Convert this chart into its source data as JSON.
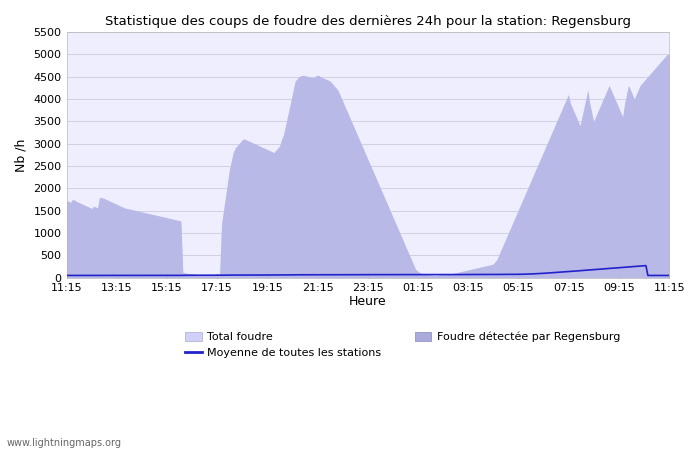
{
  "title": "Statistique des coups de foudre des dernières 24h pour la station: Regensburg",
  "ylabel": "Nb /h",
  "xlabel": "Heure",
  "watermark": "www.lightningmaps.org",
  "ylim": [
    0,
    5500
  ],
  "yticks": [
    0,
    500,
    1000,
    1500,
    2000,
    2500,
    3000,
    3500,
    4000,
    4500,
    5000,
    5500
  ],
  "x_labels": [
    "11:15",
    "13:15",
    "15:15",
    "17:15",
    "19:15",
    "21:15",
    "23:15",
    "01:15",
    "03:15",
    "05:15",
    "07:15",
    "09:15",
    "11:15"
  ],
  "legend_items": [
    "Total foudre",
    "Moyenne de toutes les stations",
    "Foudre détectée par Regensburg"
  ],
  "bg_color": "#ffffff",
  "plot_bg_color": "#eeeeff",
  "grid_color": "#ccccdd",
  "fill_total_color": "#d0d0f8",
  "fill_local_color": "#aaaadd",
  "mean_line_color": "#2222cc",
  "total_foudre": [
    1700,
    1720,
    1680,
    1750,
    1740,
    1710,
    1690,
    1670,
    1650,
    1630,
    1610,
    1590,
    1570,
    1550,
    1600,
    1580,
    1560,
    1800,
    1790,
    1780,
    1760,
    1740,
    1720,
    1700,
    1680,
    1660,
    1640,
    1620,
    1600,
    1580,
    1560,
    1550,
    1540,
    1530,
    1520,
    1510,
    1500,
    1490,
    1480,
    1470,
    1460,
    1450,
    1440,
    1430,
    1420,
    1410,
    1400,
    1390,
    1380,
    1370,
    1360,
    1350,
    1340,
    1330,
    1320,
    1310,
    1300,
    1290,
    1280,
    1270,
    120,
    110,
    100,
    95,
    90,
    85,
    80,
    75,
    70,
    65,
    60,
    55,
    50,
    55,
    60,
    65,
    70,
    75,
    80,
    85,
    1200,
    1500,
    1800,
    2100,
    2400,
    2600,
    2800,
    2900,
    2950,
    3000,
    3050,
    3100,
    3100,
    3080,
    3060,
    3040,
    3020,
    3000,
    2980,
    2960,
    2940,
    2920,
    2900,
    2880,
    2860,
    2840,
    2820,
    2800,
    2850,
    2900,
    2950,
    3100,
    3200,
    3400,
    3600,
    3800,
    4000,
    4200,
    4400,
    4450,
    4500,
    4520,
    4530,
    4520,
    4510,
    4500,
    4490,
    4480,
    4500,
    4520,
    4530,
    4500,
    4480,
    4460,
    4440,
    4420,
    4400,
    4350,
    4300,
    4250,
    4200,
    4100,
    4000,
    3900,
    3800,
    3700,
    3600,
    3500,
    3400,
    3300,
    3200,
    3100,
    3000,
    2900,
    2800,
    2700,
    2600,
    2500,
    2400,
    2300,
    2200,
    2100,
    2000,
    1900,
    1800,
    1700,
    1600,
    1500,
    1400,
    1300,
    1200,
    1100,
    1000,
    900,
    800,
    700,
    600,
    500,
    400,
    300,
    200,
    150,
    120,
    100,
    90,
    80,
    70,
    65,
    60,
    55,
    50,
    55,
    60,
    65,
    70,
    75,
    80,
    85,
    90,
    95,
    100,
    110,
    120,
    130,
    140,
    150,
    160,
    170,
    180,
    190,
    200,
    210,
    220,
    230,
    240,
    250,
    260,
    270,
    280,
    290,
    300,
    350,
    400,
    500,
    600,
    700,
    800,
    900,
    1000,
    1100,
    1200,
    1300,
    1400,
    1500,
    1600,
    1700,
    1800,
    1900,
    2000,
    2100,
    2200,
    2300,
    2400,
    2500,
    2600,
    2700,
    2800,
    2900,
    3000,
    3100,
    3200,
    3300,
    3400,
    3500,
    3600,
    3700,
    3800,
    3900,
    4000,
    4100,
    3900,
    3800,
    3700,
    3600,
    3500,
    3400,
    3600,
    3800,
    4000,
    4200,
    3900,
    3700,
    3500,
    3600,
    3700,
    3800,
    3900,
    4000,
    4100,
    4200,
    4300,
    4200,
    4100,
    4000,
    3900,
    3800,
    3700,
    3600,
    3900,
    4100,
    4300,
    4200,
    4100,
    4000,
    4100,
    4200,
    4300,
    4350,
    4400,
    4450,
    4500,
    4550,
    4600,
    4650,
    4700,
    4750,
    4800,
    4850,
    4900,
    4950,
    5000,
    5000
  ],
  "local_foudre": [
    1700,
    1720,
    1680,
    1750,
    1740,
    1710,
    1690,
    1670,
    1650,
    1630,
    1610,
    1590,
    1570,
    1550,
    1600,
    1580,
    1560,
    1800,
    1790,
    1780,
    1760,
    1740,
    1720,
    1700,
    1680,
    1660,
    1640,
    1620,
    1600,
    1580,
    1560,
    1550,
    1540,
    1530,
    1520,
    1510,
    1500,
    1490,
    1480,
    1470,
    1460,
    1450,
    1440,
    1430,
    1420,
    1410,
    1400,
    1390,
    1380,
    1370,
    1360,
    1350,
    1340,
    1330,
    1320,
    1310,
    1300,
    1290,
    1280,
    1270,
    120,
    110,
    100,
    95,
    90,
    85,
    80,
    75,
    70,
    65,
    60,
    55,
    50,
    55,
    60,
    65,
    70,
    75,
    80,
    85,
    1200,
    1500,
    1800,
    2100,
    2400,
    2600,
    2800,
    2900,
    2950,
    3000,
    3050,
    3100,
    3100,
    3080,
    3060,
    3040,
    3020,
    3000,
    2980,
    2960,
    2940,
    2920,
    2900,
    2880,
    2860,
    2840,
    2820,
    2800,
    2850,
    2900,
    2950,
    3100,
    3200,
    3400,
    3600,
    3800,
    4000,
    4200,
    4400,
    4450,
    4500,
    4520,
    4530,
    4520,
    4510,
    4500,
    4490,
    4480,
    4500,
    4520,
    4530,
    4500,
    4480,
    4460,
    4440,
    4420,
    4400,
    4350,
    4300,
    4250,
    4200,
    4100,
    4000,
    3900,
    3800,
    3700,
    3600,
    3500,
    3400,
    3300,
    3200,
    3100,
    3000,
    2900,
    2800,
    2700,
    2600,
    2500,
    2400,
    2300,
    2200,
    2100,
    2000,
    1900,
    1800,
    1700,
    1600,
    1500,
    1400,
    1300,
    1200,
    1100,
    1000,
    900,
    800,
    700,
    600,
    500,
    400,
    300,
    200,
    150,
    120,
    100,
    90,
    80,
    70,
    65,
    60,
    55,
    50,
    55,
    60,
    65,
    70,
    75,
    80,
    85,
    90,
    95,
    100,
    110,
    120,
    130,
    140,
    150,
    160,
    170,
    180,
    190,
    200,
    210,
    220,
    230,
    240,
    250,
    260,
    270,
    280,
    290,
    300,
    350,
    400,
    500,
    600,
    700,
    800,
    900,
    1000,
    1100,
    1200,
    1300,
    1400,
    1500,
    1600,
    1700,
    1800,
    1900,
    2000,
    2100,
    2200,
    2300,
    2400,
    2500,
    2600,
    2700,
    2800,
    2900,
    3000,
    3100,
    3200,
    3300,
    3400,
    3500,
    3600,
    3700,
    3800,
    3900,
    4000,
    4100,
    3900,
    3800,
    3700,
    3600,
    3500,
    3400,
    3600,
    3800,
    4000,
    4200,
    3900,
    3700,
    3500,
    3600,
    3700,
    3800,
    3900,
    4000,
    4100,
    4200,
    4300,
    4200,
    4100,
    4000,
    3900,
    3800,
    3700,
    3600,
    3900,
    4100,
    4300,
    4200,
    4100,
    4000,
    4100,
    4200,
    4300,
    4350,
    4400,
    4450,
    4500,
    4550,
    4600,
    4650,
    4700,
    4750,
    4800,
    4850,
    4900,
    4950,
    5000,
    5000
  ],
  "mean_line_values": [
    50,
    50,
    50,
    50,
    50,
    50,
    50,
    50,
    50,
    50,
    50,
    50,
    50,
    50,
    50,
    50,
    50,
    50,
    50,
    50,
    50,
    50,
    52,
    52,
    52,
    52,
    52,
    52,
    52,
    52,
    52,
    52,
    52,
    52,
    52,
    52,
    52,
    52,
    52,
    52,
    52,
    52,
    52,
    52,
    52,
    52,
    52,
    52,
    52,
    52,
    52,
    52,
    52,
    52,
    52,
    52,
    52,
    52,
    52,
    52,
    54,
    54,
    54,
    54,
    54,
    54,
    54,
    54,
    54,
    54,
    54,
    54,
    54,
    55,
    55,
    55,
    55,
    55,
    55,
    55,
    56,
    56,
    57,
    57,
    57,
    58,
    58,
    58,
    58,
    59,
    59,
    59,
    60,
    60,
    60,
    60,
    60,
    60,
    60,
    60,
    60,
    60,
    60,
    60,
    60,
    60,
    61,
    61,
    61,
    61,
    62,
    62,
    62,
    62,
    63,
    63,
    63,
    64,
    64,
    64,
    65,
    65,
    65,
    65,
    65,
    65,
    65,
    65,
    66,
    66,
    66,
    66,
    66,
    66,
    66,
    66,
    66,
    66,
    66,
    66,
    67,
    67,
    67,
    67,
    67,
    67,
    67,
    67,
    67,
    67,
    67,
    67,
    67,
    68,
    68,
    68,
    68,
    68,
    68,
    68,
    68,
    68,
    68,
    68,
    68,
    68,
    68,
    68,
    68,
    68,
    68,
    68,
    69,
    69,
    69,
    69,
    69,
    69,
    69,
    69,
    69,
    69,
    69,
    70,
    70,
    70,
    70,
    70,
    70,
    70,
    70,
    70,
    70,
    70,
    70,
    70,
    70,
    70,
    70,
    70,
    70,
    70,
    70,
    70,
    70,
    71,
    71,
    71,
    71,
    71,
    71,
    71,
    71,
    71,
    71,
    72,
    72,
    72,
    72,
    72,
    72,
    73,
    73,
    73,
    73,
    74,
    74,
    74,
    74,
    74,
    75,
    75,
    75,
    76,
    76,
    77,
    78,
    79,
    80,
    82,
    84,
    86,
    88,
    90,
    92,
    95,
    97,
    100,
    103,
    106,
    109,
    112,
    115,
    118,
    121,
    124,
    127,
    130,
    133,
    136,
    140,
    143,
    147,
    150,
    153,
    157,
    160,
    163,
    167,
    170,
    173,
    177,
    180,
    183,
    187,
    190,
    193,
    197,
    200,
    203,
    207,
    210,
    213,
    217,
    220,
    223,
    227,
    230,
    233,
    237,
    240,
    243,
    247,
    250,
    253,
    257,
    260,
    263,
    267,
    270,
    50,
    50,
    50,
    50,
    50,
    50,
    50,
    50,
    50,
    50,
    50,
    50
  ]
}
